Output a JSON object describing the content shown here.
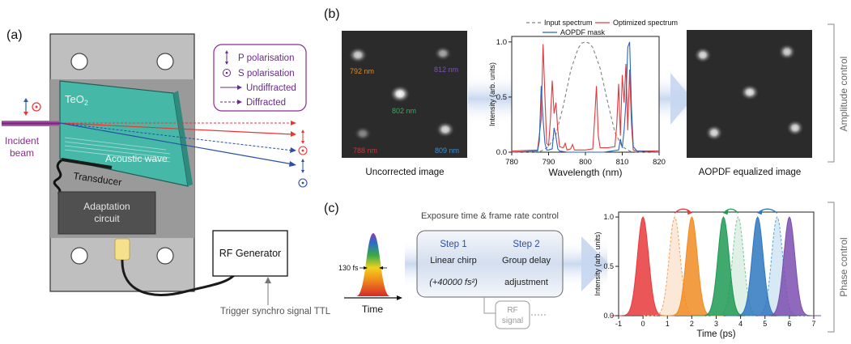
{
  "panel_a": {
    "label": "(a)",
    "crystal": "TeO",
    "crystal_sub": "2",
    "acoustic_wave": "Acoustic wave",
    "transducer": "Transducer",
    "adaptation_line1": "Adaptation",
    "adaptation_line2": "circuit",
    "incident_line1": "Incident",
    "incident_line2": "beam",
    "rf_generator": "RF Generator",
    "trigger": "Trigger synchro signal TTL",
    "legend": {
      "p_pol": "P polarisation",
      "s_pol": "S polarisation",
      "undiffracted": "Undiffracted",
      "diffracted": "Diffracted"
    }
  },
  "panel_b": {
    "label": "(b)",
    "uncorrected_caption": "Uncorrected image",
    "equalized_caption": "AOPDF equalized image",
    "side_label": "Amplitude control",
    "spots": [
      {
        "label": "792 nm",
        "color": "#d98a2b"
      },
      {
        "label": "812 nm",
        "color": "#7b52b5"
      },
      {
        "label": "802 nm",
        "color": "#2fae55"
      },
      {
        "label": "788 nm",
        "color": "#c8383a"
      },
      {
        "label": "809 nm",
        "color": "#3c8fd6"
      }
    ],
    "chart_data": {
      "type": "line",
      "xlabel": "Wavelength (nm)",
      "ylabel": "Intensity (arb. units)",
      "xlim": [
        780,
        820
      ],
      "ylim": [
        0,
        1.05
      ],
      "xticks": [
        780,
        790,
        800,
        810,
        820
      ],
      "yticks": [
        0.0,
        0.5,
        1.0
      ],
      "series": [
        {
          "name": "Input spectrum",
          "color": "#808080",
          "dash": true,
          "x": [
            780,
            786,
            788,
            790,
            792,
            794,
            796,
            798,
            799,
            800,
            801,
            802,
            804,
            806,
            808,
            810,
            812,
            814,
            820
          ],
          "y": [
            0.0,
            0.0,
            0.01,
            0.05,
            0.16,
            0.42,
            0.74,
            0.94,
            0.99,
            1.0,
            0.99,
            0.95,
            0.76,
            0.46,
            0.18,
            0.05,
            0.01,
            0.0,
            0.0
          ]
        },
        {
          "name": "Optimized spectrum",
          "color": "#e0393e",
          "dash": false,
          "x": [
            780,
            787,
            788,
            788.5,
            789,
            789.5,
            790,
            790.5,
            791,
            791.5,
            792,
            792.5,
            793,
            794,
            794.5,
            795,
            796,
            796.5,
            797,
            798,
            800,
            802,
            802.5,
            803,
            803.5,
            804,
            806,
            808,
            808.5,
            809,
            809.5,
            810,
            810.5,
            811,
            811.5,
            812,
            812.5,
            813,
            814,
            820
          ],
          "y": [
            0.01,
            0.02,
            0.3,
            0.98,
            0.5,
            0.08,
            0.06,
            0.3,
            0.65,
            0.35,
            0.45,
            0.2,
            0.05,
            0.04,
            0.08,
            0.02,
            0.03,
            0.07,
            0.02,
            0.02,
            0.02,
            0.03,
            0.3,
            0.6,
            0.15,
            0.04,
            0.04,
            0.05,
            0.25,
            0.62,
            0.15,
            0.7,
            0.45,
            0.8,
            0.2,
            0.75,
            0.25,
            0.02,
            0.01,
            0.01
          ]
        },
        {
          "name": "AOPDF mask",
          "color": "#2a63b8",
          "dash": false,
          "x": [
            780,
            787,
            787.5,
            788,
            788.5,
            789,
            789.5,
            790,
            791,
            791.5,
            792,
            792.5,
            793,
            795,
            800,
            805,
            809,
            809.5,
            810,
            810.5,
            811,
            811.5,
            812,
            812.5,
            813,
            814,
            820
          ],
          "y": [
            0.0,
            0.01,
            0.1,
            0.6,
            0.3,
            0.08,
            0.02,
            0.02,
            0.03,
            0.22,
            0.14,
            0.03,
            0.01,
            0.0,
            0.0,
            0.0,
            0.02,
            0.12,
            0.04,
            0.2,
            0.45,
            0.95,
            1.0,
            0.4,
            0.05,
            0.01,
            0.0
          ]
        }
      ]
    }
  },
  "panel_c": {
    "label": "(c)",
    "exposure_title": "Exposure time & frame rate control",
    "step1_title": "Step 1",
    "step2_title": "Step 2",
    "step1_line1": "Linear chirp",
    "step1_line2": "(+40000 fs²)",
    "step2_line1": "Group delay",
    "step2_line2": "adjustment",
    "rf_line1": "RF",
    "rf_line2": "signal",
    "pulse_width": "130 fs",
    "time_label": "Time",
    "side_label": "Phase control",
    "chart_data": {
      "type": "area",
      "xlabel": "Time (ps)",
      "ylabel": "Intensity (arb. units)",
      "xlim": [
        -1,
        7
      ],
      "ylim": [
        0,
        1.05
      ],
      "xticks": [
        -1,
        0,
        1,
        2,
        3,
        4,
        5,
        6,
        7
      ],
      "yticks": [
        0.0,
        0.5,
        1.0
      ],
      "series": [
        {
          "color": "#e8393b",
          "center": 0.0,
          "dashed": false,
          "width": 0.38
        },
        {
          "color": "#f2a35a",
          "center": 1.3,
          "dashed": true,
          "width": 0.38
        },
        {
          "color": "#f08c22",
          "center": 2.0,
          "dashed": false,
          "width": 0.38
        },
        {
          "color": "#7fc59a",
          "center": 3.9,
          "dashed": true,
          "width": 0.38
        },
        {
          "color": "#1f9a55",
          "center": 3.3,
          "dashed": false,
          "width": 0.38
        },
        {
          "color": "#5aa6d8",
          "center": 5.5,
          "dashed": true,
          "width": 0.38
        },
        {
          "color": "#2e77c0",
          "center": 4.7,
          "dashed": false,
          "width": 0.38
        },
        {
          "color": "#7c4fb0",
          "center": 6.0,
          "dashed": false,
          "width": 0.38
        }
      ]
    }
  }
}
